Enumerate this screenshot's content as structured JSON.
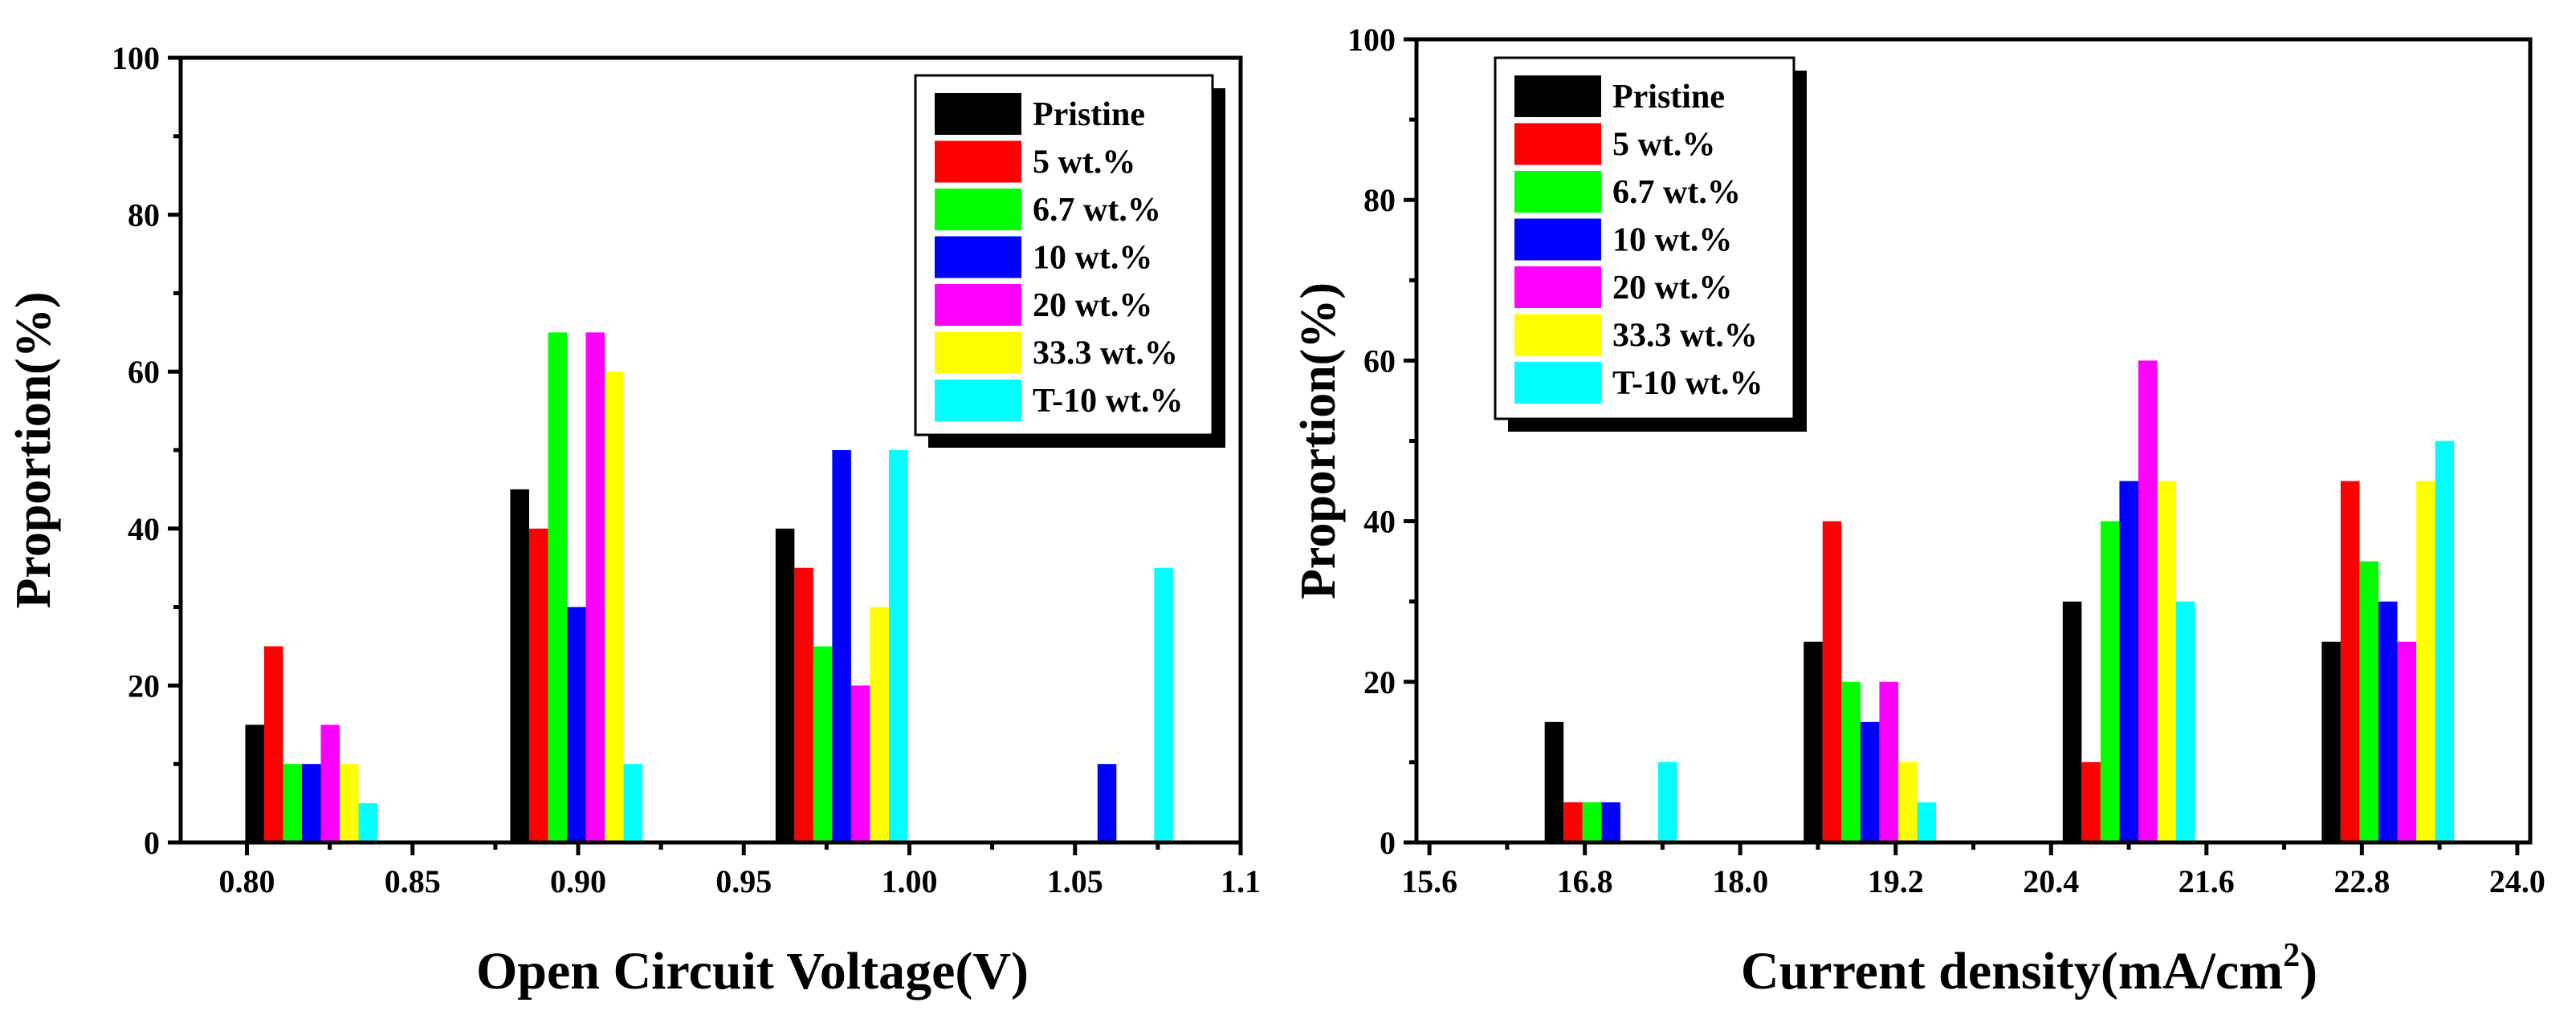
{
  "series_names": [
    "Pristine",
    "5 wt.%",
    "6.7 wt.%",
    "10 wt.%",
    "20 wt.%",
    "33.3 wt.%",
    "T-10 wt.%"
  ],
  "series_colors": [
    "#000000",
    "#ff0000",
    "#00ff00",
    "#0000ff",
    "#ff00ff",
    "#ffff00",
    "#00ffff"
  ],
  "chart_data": [
    {
      "type": "bar",
      "title": "",
      "xlabel": "Open Circuit Voltage(V)",
      "ylabel": "Proportion(%)",
      "xlim": [
        0.78,
        1.1
      ],
      "ylim": [
        0,
        100
      ],
      "x_ticks": [
        "0.80",
        "0.85",
        "0.90",
        "0.95",
        "1.00",
        "1.05",
        "1.1"
      ],
      "y_ticks": [
        "0",
        "20",
        "40",
        "60",
        "80",
        "100"
      ],
      "legend_position": "top-right",
      "bar_width": 0.0057,
      "group_starts": [
        0.7995,
        0.8795,
        0.9596,
        1.0397
      ],
      "series": [
        {
          "name": "Pristine",
          "values": [
            15,
            45,
            40,
            0
          ]
        },
        {
          "name": "5 wt.%",
          "values": [
            25,
            40,
            35,
            0
          ]
        },
        {
          "name": "6.7 wt.%",
          "values": [
            10,
            65,
            25,
            0
          ]
        },
        {
          "name": "10 wt.%",
          "values": [
            10,
            30,
            50,
            10
          ]
        },
        {
          "name": "20 wt.%",
          "values": [
            15,
            65,
            20,
            0
          ]
        },
        {
          "name": "33.3 wt.%",
          "values": [
            10,
            60,
            30,
            0
          ]
        },
        {
          "name": "T-10 wt.%",
          "values": [
            5,
            10,
            50,
            35
          ]
        }
      ]
    },
    {
      "type": "bar",
      "title": "",
      "xlabel": "Current density(mA/cm",
      "xlabel_sup": "2",
      "xlabel_end": ")",
      "ylabel": "Proportion(%)",
      "xlim": [
        15.5,
        24.1
      ],
      "ylim": [
        0,
        100
      ],
      "x_ticks": [
        "15.6",
        "16.8",
        "18.0",
        "19.2",
        "20.4",
        "21.6",
        "22.8",
        "24.0"
      ],
      "y_ticks": [
        "0",
        "20",
        "40",
        "60",
        "80",
        "100"
      ],
      "legend_position": "top-left",
      "bar_width": 0.146,
      "group_starts": [
        16.49,
        18.49,
        20.49,
        22.49
      ],
      "series": [
        {
          "name": "Pristine",
          "values": [
            15,
            25,
            30,
            25
          ]
        },
        {
          "name": "5 wt.%",
          "values": [
            5,
            40,
            10,
            45
          ]
        },
        {
          "name": "6.7 wt.%",
          "values": [
            5,
            20,
            40,
            35
          ]
        },
        {
          "name": "10 wt.%",
          "values": [
            5,
            15,
            45,
            30
          ]
        },
        {
          "name": "20 wt.%",
          "values": [
            0,
            20,
            60,
            25
          ]
        },
        {
          "name": "33.3 wt.%",
          "values": [
            0,
            10,
            45,
            45
          ]
        },
        {
          "name": "T-10 wt.%",
          "values": [
            10,
            5,
            30,
            50
          ]
        }
      ]
    }
  ]
}
